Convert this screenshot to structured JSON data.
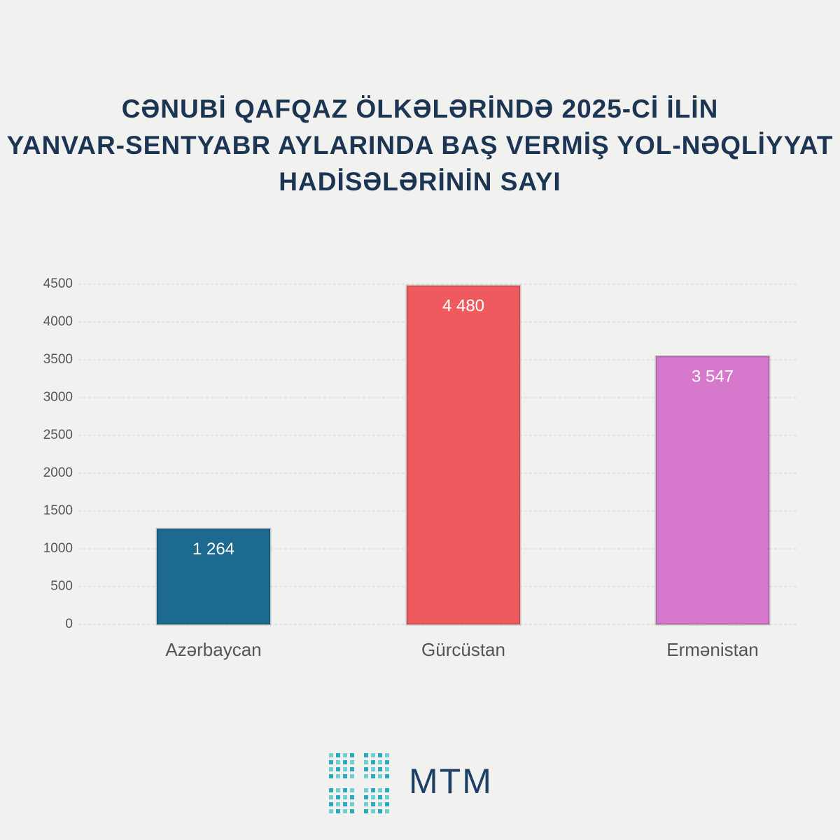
{
  "chart_data": {
    "type": "bar",
    "title": [
      "CƏNUBİ QAFQAZ ÖLKƏLƏRİNDƏ 2025-Cİ İLİN",
      "YANVAR-SENTYABR AYLARINDA BAŞ VERMİŞ YOL-NƏQLİYYAT",
      "HADİSƏLƏRİNİN SAYI"
    ],
    "categories": [
      "Azərbaycan",
      "Gürcüstan",
      "Ermənistan"
    ],
    "values": [
      1264,
      4480,
      3547
    ],
    "value_labels": [
      "1 264",
      "4 480",
      "3 547"
    ],
    "colors": [
      "#1c6a8f",
      "#ef5a5f",
      "#d678cc"
    ],
    "ylim": [
      0,
      4500
    ],
    "yticks": [
      0,
      500,
      1000,
      1500,
      2000,
      2500,
      3000,
      3500,
      4000,
      4500
    ],
    "grid": true
  },
  "logo": "MTM"
}
